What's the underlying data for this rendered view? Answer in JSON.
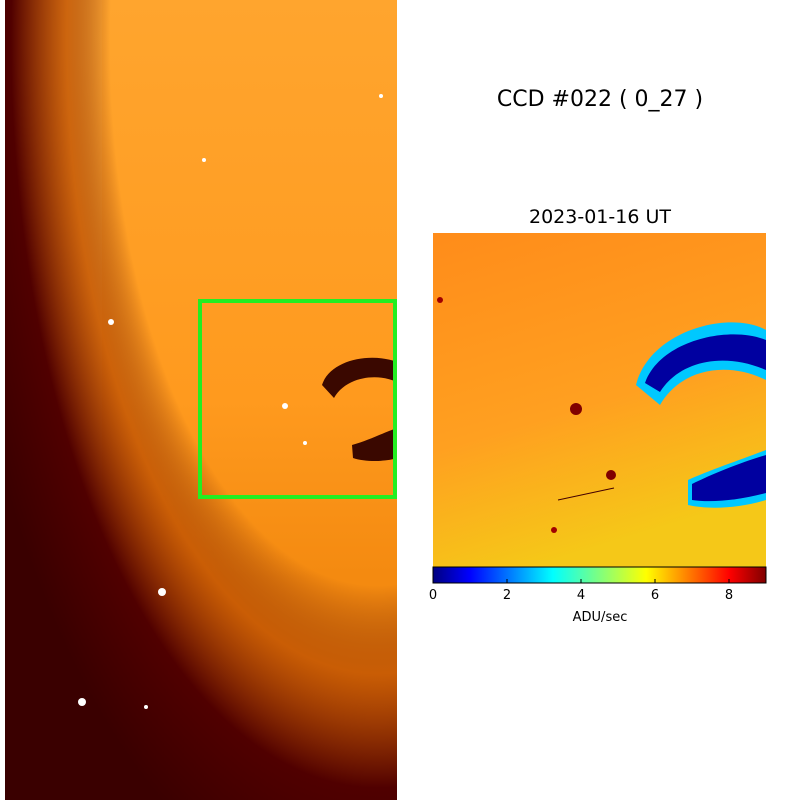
{
  "title": "CCD #022 ( 0_27 )",
  "subtitle": "2023-01-16 UT",
  "colorbar": {
    "label": "ADU/sec",
    "lim": [
      0,
      9
    ],
    "ticks": [
      0,
      2,
      4,
      6,
      8
    ]
  }
}
